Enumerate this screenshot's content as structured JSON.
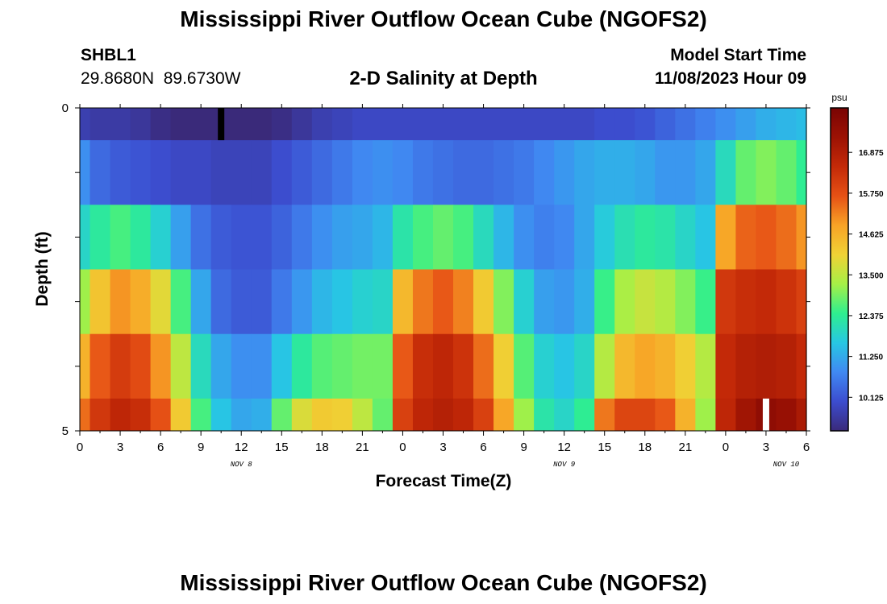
{
  "header": {
    "title": "Mississippi River Outflow Ocean Cube (NGOFS2)",
    "station_id": "SHBL1",
    "station_coords": "29.8680N  89.6730W",
    "subtitle": "2-D Salinity at Depth",
    "model_start_label": "Model Start Time",
    "model_start_value": "11/08/2023 Hour 09"
  },
  "footer": {
    "title": "Mississippi River Outflow Ocean Cube (NGOFS2)"
  },
  "chart_data": {
    "type": "heatmap",
    "title": "2-D Salinity at Depth",
    "xlabel": "Forecast Time(Z)",
    "ylabel": "Depth (ft)",
    "x_range_hours": [
      0,
      54
    ],
    "y_range": [
      0,
      5
    ],
    "x_ticks": [
      "0",
      "3",
      "6",
      "9",
      "12",
      "15",
      "18",
      "21",
      "0",
      "3",
      "6",
      "9",
      "12",
      "15",
      "18",
      "21",
      "0",
      "3",
      "6"
    ],
    "y_ticks": [
      "0",
      "5"
    ],
    "dates": [
      {
        "label": "NOV 8",
        "hour": 12
      },
      {
        "label": "NOV 9",
        "hour": 36
      },
      {
        "label": "NOV 10",
        "hour": 52.5
      }
    ],
    "colorbar": {
      "unit": "psu",
      "range": [
        9.2,
        18.1
      ],
      "ticks": [
        "10.125",
        "11.250",
        "12.375",
        "13.500",
        "14.625",
        "15.750",
        "16.875"
      ],
      "colors": [
        "#3a2a7a",
        "#3c4dcf",
        "#4089f2",
        "#27c7e3",
        "#2eef8f",
        "#a6f046",
        "#f0d235",
        "#f8a326",
        "#e65115",
        "#c42a08",
        "#9c1204",
        "#7a0403"
      ]
    },
    "hours": [
      0,
      1.5,
      3,
      4.5,
      6,
      7.5,
      9,
      10.5,
      12,
      13.5,
      15,
      16.5,
      18,
      19.5,
      21,
      22.5,
      24,
      25.5,
      27,
      28.5,
      30,
      31.5,
      33,
      34.5,
      36,
      37.5,
      39,
      40.5,
      42,
      43.5,
      45,
      46.5,
      48,
      49.5,
      51,
      52.5,
      54
    ],
    "layers": [
      {
        "name": "layer-1",
        "depth_range": [
          0,
          0.5
        ],
        "values": [
          9.7,
          9.6,
          9.6,
          9.5,
          9.3,
          9.2,
          9.1,
          9.0,
          9.0,
          9.1,
          9.3,
          9.5,
          9.7,
          9.8,
          9.9,
          9.9,
          9.9,
          9.9,
          9.9,
          9.9,
          9.9,
          9.9,
          9.9,
          9.9,
          9.9,
          9.9,
          10.0,
          10.0,
          10.1,
          10.3,
          10.5,
          10.7,
          10.9,
          11.1,
          11.3,
          11.4,
          11.5
        ]
      },
      {
        "name": "layer-2",
        "depth_range": [
          0.5,
          1.5
        ],
        "values": [
          10.9,
          10.4,
          10.2,
          10.1,
          10.0,
          9.9,
          9.9,
          9.8,
          9.8,
          9.8,
          10.0,
          10.2,
          10.4,
          10.6,
          10.8,
          10.9,
          10.8,
          10.6,
          10.5,
          10.4,
          10.4,
          10.5,
          10.6,
          10.8,
          11.0,
          11.2,
          11.3,
          11.3,
          11.2,
          11.0,
          11.0,
          11.2,
          12.0,
          12.8,
          13.0,
          12.8,
          12.4
        ]
      },
      {
        "name": "layer-3",
        "depth_range": [
          1.5,
          2.5
        ],
        "values": [
          11.9,
          12.3,
          12.6,
          12.3,
          11.8,
          11.1,
          10.5,
          10.2,
          10.1,
          10.1,
          10.3,
          10.6,
          10.9,
          11.1,
          11.2,
          11.4,
          12.2,
          12.6,
          12.8,
          12.6,
          12.0,
          11.4,
          10.9,
          10.7,
          10.8,
          11.2,
          11.7,
          12.1,
          12.3,
          12.2,
          11.9,
          11.6,
          14.8,
          15.5,
          15.6,
          15.4,
          15.0
        ]
      },
      {
        "name": "layer-4",
        "depth_range": [
          2.5,
          3.5
        ],
        "values": [
          13.2,
          14.3,
          15.0,
          14.7,
          13.9,
          12.6,
          11.2,
          10.4,
          10.2,
          10.2,
          10.6,
          11.0,
          11.4,
          11.6,
          11.8,
          11.9,
          14.5,
          15.3,
          15.6,
          15.2,
          14.2,
          13.0,
          11.8,
          11.1,
          11.0,
          11.3,
          12.5,
          13.3,
          13.6,
          13.4,
          13.0,
          12.5,
          16.2,
          16.4,
          16.5,
          16.3,
          16.0
        ]
      },
      {
        "name": "layer-5",
        "depth_range": [
          3.5,
          4.5
        ],
        "values": [
          14.6,
          15.6,
          16.1,
          15.8,
          15.0,
          13.5,
          12.0,
          11.2,
          10.9,
          10.9,
          11.6,
          12.3,
          12.7,
          12.8,
          12.9,
          12.9,
          15.6,
          16.4,
          16.6,
          16.3,
          15.4,
          14.1,
          12.7,
          11.8,
          11.6,
          11.9,
          13.4,
          14.5,
          14.8,
          14.6,
          14.1,
          13.4,
          16.5,
          16.8,
          16.9,
          16.8,
          16.5
        ]
      },
      {
        "name": "layer-6",
        "depth_range": [
          4.5,
          5
        ],
        "values": [
          15.4,
          16.2,
          16.6,
          16.4,
          15.7,
          14.2,
          12.6,
          11.6,
          11.2,
          11.3,
          12.8,
          13.8,
          14.2,
          14.1,
          13.5,
          12.8,
          16.0,
          16.6,
          16.8,
          16.6,
          16.0,
          14.8,
          13.2,
          12.2,
          11.9,
          12.4,
          15.3,
          15.9,
          15.9,
          15.6,
          14.6,
          13.2,
          16.6,
          17.2,
          17.6,
          17.4,
          17.0
        ]
      }
    ],
    "markers": [
      {
        "name": "min-marker",
        "hour": 10.5,
        "layer": 0,
        "color": "#000000"
      },
      {
        "name": "max-marker",
        "hour": 51,
        "layer": 5,
        "color": "#ffffff"
      }
    ]
  }
}
